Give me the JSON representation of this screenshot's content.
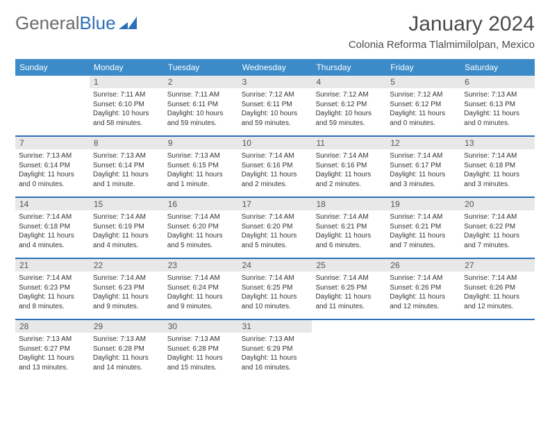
{
  "brand": {
    "part1": "General",
    "part2": "Blue"
  },
  "header": {
    "title": "January 2024",
    "location": "Colonia Reforma Tlalmimilolpan, Mexico"
  },
  "colors": {
    "header_bg": "#3b8bc9",
    "header_text": "#ffffff",
    "week_divider": "#2d6fb7",
    "daynum_bg": "#e8e8e8",
    "text": "#333333",
    "brand_gray": "#6b6b6b",
    "brand_blue": "#2d6fb7"
  },
  "dayNames": [
    "Sunday",
    "Monday",
    "Tuesday",
    "Wednesday",
    "Thursday",
    "Friday",
    "Saturday"
  ],
  "weeks": [
    [
      {
        "n": "",
        "sr": "",
        "ss": "",
        "dl": ""
      },
      {
        "n": "1",
        "sr": "Sunrise: 7:11 AM",
        "ss": "Sunset: 6:10 PM",
        "dl": "Daylight: 10 hours and 58 minutes."
      },
      {
        "n": "2",
        "sr": "Sunrise: 7:11 AM",
        "ss": "Sunset: 6:11 PM",
        "dl": "Daylight: 10 hours and 59 minutes."
      },
      {
        "n": "3",
        "sr": "Sunrise: 7:12 AM",
        "ss": "Sunset: 6:11 PM",
        "dl": "Daylight: 10 hours and 59 minutes."
      },
      {
        "n": "4",
        "sr": "Sunrise: 7:12 AM",
        "ss": "Sunset: 6:12 PM",
        "dl": "Daylight: 10 hours and 59 minutes."
      },
      {
        "n": "5",
        "sr": "Sunrise: 7:12 AM",
        "ss": "Sunset: 6:12 PM",
        "dl": "Daylight: 11 hours and 0 minutes."
      },
      {
        "n": "6",
        "sr": "Sunrise: 7:13 AM",
        "ss": "Sunset: 6:13 PM",
        "dl": "Daylight: 11 hours and 0 minutes."
      }
    ],
    [
      {
        "n": "7",
        "sr": "Sunrise: 7:13 AM",
        "ss": "Sunset: 6:14 PM",
        "dl": "Daylight: 11 hours and 0 minutes."
      },
      {
        "n": "8",
        "sr": "Sunrise: 7:13 AM",
        "ss": "Sunset: 6:14 PM",
        "dl": "Daylight: 11 hours and 1 minute."
      },
      {
        "n": "9",
        "sr": "Sunrise: 7:13 AM",
        "ss": "Sunset: 6:15 PM",
        "dl": "Daylight: 11 hours and 1 minute."
      },
      {
        "n": "10",
        "sr": "Sunrise: 7:14 AM",
        "ss": "Sunset: 6:16 PM",
        "dl": "Daylight: 11 hours and 2 minutes."
      },
      {
        "n": "11",
        "sr": "Sunrise: 7:14 AM",
        "ss": "Sunset: 6:16 PM",
        "dl": "Daylight: 11 hours and 2 minutes."
      },
      {
        "n": "12",
        "sr": "Sunrise: 7:14 AM",
        "ss": "Sunset: 6:17 PM",
        "dl": "Daylight: 11 hours and 3 minutes."
      },
      {
        "n": "13",
        "sr": "Sunrise: 7:14 AM",
        "ss": "Sunset: 6:18 PM",
        "dl": "Daylight: 11 hours and 3 minutes."
      }
    ],
    [
      {
        "n": "14",
        "sr": "Sunrise: 7:14 AM",
        "ss": "Sunset: 6:18 PM",
        "dl": "Daylight: 11 hours and 4 minutes."
      },
      {
        "n": "15",
        "sr": "Sunrise: 7:14 AM",
        "ss": "Sunset: 6:19 PM",
        "dl": "Daylight: 11 hours and 4 minutes."
      },
      {
        "n": "16",
        "sr": "Sunrise: 7:14 AM",
        "ss": "Sunset: 6:20 PM",
        "dl": "Daylight: 11 hours and 5 minutes."
      },
      {
        "n": "17",
        "sr": "Sunrise: 7:14 AM",
        "ss": "Sunset: 6:20 PM",
        "dl": "Daylight: 11 hours and 5 minutes."
      },
      {
        "n": "18",
        "sr": "Sunrise: 7:14 AM",
        "ss": "Sunset: 6:21 PM",
        "dl": "Daylight: 11 hours and 6 minutes."
      },
      {
        "n": "19",
        "sr": "Sunrise: 7:14 AM",
        "ss": "Sunset: 6:21 PM",
        "dl": "Daylight: 11 hours and 7 minutes."
      },
      {
        "n": "20",
        "sr": "Sunrise: 7:14 AM",
        "ss": "Sunset: 6:22 PM",
        "dl": "Daylight: 11 hours and 7 minutes."
      }
    ],
    [
      {
        "n": "21",
        "sr": "Sunrise: 7:14 AM",
        "ss": "Sunset: 6:23 PM",
        "dl": "Daylight: 11 hours and 8 minutes."
      },
      {
        "n": "22",
        "sr": "Sunrise: 7:14 AM",
        "ss": "Sunset: 6:23 PM",
        "dl": "Daylight: 11 hours and 9 minutes."
      },
      {
        "n": "23",
        "sr": "Sunrise: 7:14 AM",
        "ss": "Sunset: 6:24 PM",
        "dl": "Daylight: 11 hours and 9 minutes."
      },
      {
        "n": "24",
        "sr": "Sunrise: 7:14 AM",
        "ss": "Sunset: 6:25 PM",
        "dl": "Daylight: 11 hours and 10 minutes."
      },
      {
        "n": "25",
        "sr": "Sunrise: 7:14 AM",
        "ss": "Sunset: 6:25 PM",
        "dl": "Daylight: 11 hours and 11 minutes."
      },
      {
        "n": "26",
        "sr": "Sunrise: 7:14 AM",
        "ss": "Sunset: 6:26 PM",
        "dl": "Daylight: 11 hours and 12 minutes."
      },
      {
        "n": "27",
        "sr": "Sunrise: 7:14 AM",
        "ss": "Sunset: 6:26 PM",
        "dl": "Daylight: 11 hours and 12 minutes."
      }
    ],
    [
      {
        "n": "28",
        "sr": "Sunrise: 7:13 AM",
        "ss": "Sunset: 6:27 PM",
        "dl": "Daylight: 11 hours and 13 minutes."
      },
      {
        "n": "29",
        "sr": "Sunrise: 7:13 AM",
        "ss": "Sunset: 6:28 PM",
        "dl": "Daylight: 11 hours and 14 minutes."
      },
      {
        "n": "30",
        "sr": "Sunrise: 7:13 AM",
        "ss": "Sunset: 6:28 PM",
        "dl": "Daylight: 11 hours and 15 minutes."
      },
      {
        "n": "31",
        "sr": "Sunrise: 7:13 AM",
        "ss": "Sunset: 6:29 PM",
        "dl": "Daylight: 11 hours and 16 minutes."
      },
      {
        "n": "",
        "sr": "",
        "ss": "",
        "dl": ""
      },
      {
        "n": "",
        "sr": "",
        "ss": "",
        "dl": ""
      },
      {
        "n": "",
        "sr": "",
        "ss": "",
        "dl": ""
      }
    ]
  ]
}
